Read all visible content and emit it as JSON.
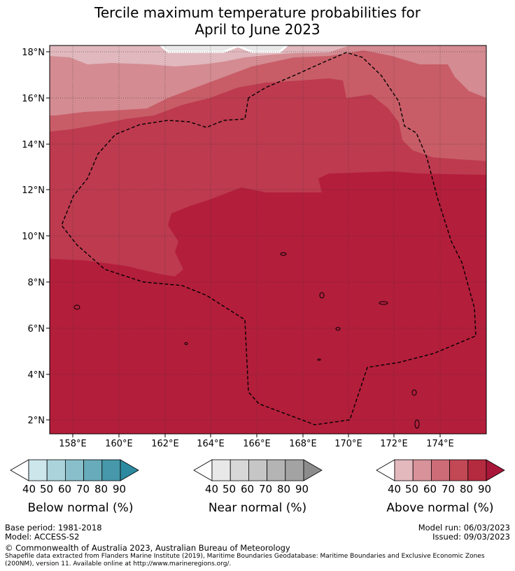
{
  "title": {
    "line1": "Tercile maximum temperature probabilities for",
    "line2": "April to June 2023"
  },
  "map": {
    "lat_labels": [
      "18°N",
      "16°N",
      "14°N",
      "12°N",
      "10°N",
      "8°N",
      "6°N",
      "4°N",
      "2°N"
    ],
    "lon_labels": [
      "158°E",
      "160°E",
      "162°E",
      "164°E",
      "166°E",
      "168°E",
      "170°E",
      "172°E",
      "174°E"
    ],
    "colors": {
      "ocean_low": "#b31e3b",
      "band_70": "#bd3a4f",
      "band_60": "#c85d67",
      "band_50": "#d48b92",
      "band_40": "#e0b8bd",
      "near_normal": "#e8e8e8"
    }
  },
  "colorbars": [
    {
      "label": "Below normal (%)",
      "ticks": [
        "40",
        "50",
        "60",
        "70",
        "80",
        "90"
      ],
      "colors": [
        "#ffffff",
        "#cde6ec",
        "#abd3dc",
        "#89bfcb",
        "#68abba",
        "#4698aa",
        "#2b8aa0"
      ]
    },
    {
      "label": "Near normal (%)",
      "ticks": [
        "40",
        "50",
        "60",
        "70",
        "80",
        "90"
      ],
      "colors": [
        "#ffffff",
        "#e8e8e8",
        "#d7d7d7",
        "#c6c6c6",
        "#b4b4b4",
        "#a3a3a3",
        "#8c8c8c"
      ]
    },
    {
      "label": "Above normal (%)",
      "ticks": [
        "40",
        "50",
        "60",
        "70",
        "80",
        "90"
      ],
      "colors": [
        "#ffffff",
        "#e3b9be",
        "#d8929a",
        "#cd6c77",
        "#c14854",
        "#b42a3f",
        "#a8173a"
      ]
    }
  ],
  "footer": {
    "base_period": "Base period: 1981-2018",
    "model": "Model: ACCESS-S2",
    "model_run": "Model run: 06/03/2023",
    "issued": "Issued: 09/03/2023",
    "copyright": "© Commonwealth of Australia 2023, Australian Bureau of Meteorology",
    "shapefile_line1": "Shapefile data extracted from Flanders Marine Institute (2019), Maritime Boundaries Geodatabase: Maritime Boundaries and Exclusive Economic Zones",
    "shapefile_line2": "(200NM), version 11. Available online at http://www.marineregions.org/."
  }
}
